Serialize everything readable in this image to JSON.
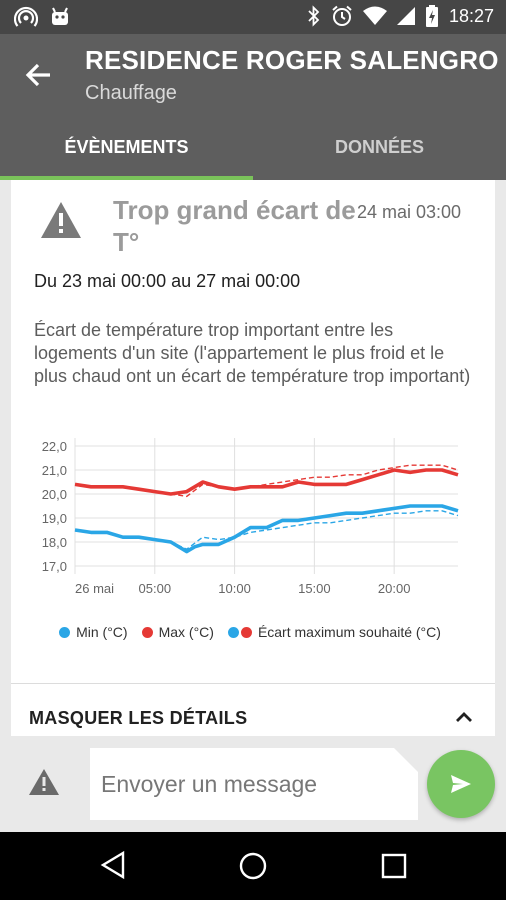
{
  "status": {
    "time": "18:27",
    "icons": [
      "hotspot-icon",
      "android-icon",
      "bluetooth-icon",
      "alarm-icon",
      "wifi-icon",
      "signal-icon",
      "battery-charging-icon"
    ]
  },
  "header": {
    "title": "RESIDENCE ROGER SALENGRO",
    "subtitle": "Chauffage",
    "back_icon": "arrow-back-icon"
  },
  "tabs": [
    {
      "label": "ÉVÈNEMENTS",
      "active": true
    },
    {
      "label": "DONNÉES",
      "active": false
    }
  ],
  "event": {
    "icon": "warning-icon",
    "title": "Trop grand écart de T°",
    "date": "24 mai 03:00",
    "range": "Du 23 mai 00:00 au 27 mai 00:00",
    "description": "Écart de température trop important entre les logements d'un site (l'appartement le plus froid et le plus chaud ont un écart de température trop important)"
  },
  "colors": {
    "min": "#2aa6e6",
    "max": "#e53935",
    "accent": "#7ac35a"
  },
  "chart_data": {
    "type": "line",
    "x_ticks": [
      "26 mai",
      "05:00",
      "10:00",
      "15:00",
      "20:00"
    ],
    "y_ticks": [
      "22,0",
      "21,0",
      "20,0",
      "19,0",
      "18,0",
      "17,0"
    ],
    "ylim": [
      17,
      22
    ],
    "xlim": [
      0,
      24
    ],
    "grid": true,
    "legend_position": "bottom",
    "series": [
      {
        "name": "Min (°C)",
        "color": "#2aa6e6",
        "style": "solid",
        "x": [
          0,
          1,
          2,
          3,
          4,
          5,
          6,
          7,
          7.5,
          8,
          9,
          10,
          11,
          12,
          13,
          14,
          15,
          16,
          17,
          18,
          19,
          20,
          21,
          22,
          23,
          24
        ],
        "y": [
          18.5,
          18.4,
          18.4,
          18.2,
          18.2,
          18.1,
          18.0,
          17.6,
          17.8,
          17.9,
          17.9,
          18.2,
          18.6,
          18.6,
          18.9,
          18.9,
          19.0,
          19.1,
          19.2,
          19.2,
          19.3,
          19.4,
          19.5,
          19.5,
          19.5,
          19.3
        ]
      },
      {
        "name": "Max (°C)",
        "color": "#e53935",
        "style": "solid",
        "x": [
          0,
          1,
          2,
          3,
          4,
          5,
          6,
          7,
          8,
          9,
          10,
          11,
          12,
          13,
          14,
          15,
          16,
          17,
          18,
          19,
          20,
          21,
          22,
          23,
          24
        ],
        "y": [
          20.4,
          20.3,
          20.3,
          20.3,
          20.2,
          20.1,
          20.0,
          20.1,
          20.5,
          20.3,
          20.2,
          20.3,
          20.3,
          20.3,
          20.5,
          20.4,
          20.4,
          20.4,
          20.6,
          20.8,
          21.0,
          20.9,
          21.0,
          21.0,
          20.8
        ]
      },
      {
        "name": "Écart maximum souhaité (°C)",
        "color": "#2aa6e6",
        "style": "dashed",
        "x": [
          0,
          1,
          2,
          3,
          4,
          5,
          6,
          7,
          8,
          9,
          10,
          11,
          12,
          13,
          14,
          15,
          16,
          17,
          18,
          19,
          20,
          21,
          22,
          23,
          24
        ],
        "y": [
          18.5,
          18.4,
          18.4,
          18.2,
          18.2,
          18.1,
          18.0,
          17.7,
          18.2,
          18.1,
          18.2,
          18.4,
          18.5,
          18.6,
          18.7,
          18.8,
          18.8,
          18.9,
          19.0,
          19.1,
          19.2,
          19.2,
          19.3,
          19.3,
          19.1
        ]
      },
      {
        "name": "Écart maximum souhaité (°C)",
        "color": "#e53935",
        "style": "dashed",
        "x": [
          0,
          1,
          2,
          3,
          4,
          5,
          6,
          7,
          8,
          9,
          10,
          11,
          12,
          13,
          14,
          15,
          16,
          17,
          18,
          19,
          20,
          21,
          22,
          23,
          24
        ],
        "y": [
          20.4,
          20.3,
          20.3,
          20.3,
          20.2,
          20.1,
          20.0,
          19.9,
          20.4,
          20.3,
          20.2,
          20.3,
          20.4,
          20.5,
          20.6,
          20.7,
          20.7,
          20.8,
          20.8,
          21.0,
          21.1,
          21.2,
          21.2,
          21.2,
          21.0
        ]
      }
    ]
  },
  "legend": {
    "min": "Min (°C)",
    "max": "Max (°C)",
    "ecart": "Écart maximum souhaité (°C)"
  },
  "details_toggle": {
    "label": "MASQUER LES DÉTAILS",
    "icon": "chevron-up-icon"
  },
  "composer": {
    "placeholder": "Envoyer un message",
    "attach_icon": "warning-icon",
    "send_icon": "send-icon"
  },
  "navbar": {
    "back_icon": "nav-back-icon",
    "home_icon": "nav-home-icon",
    "recents_icon": "nav-recents-icon"
  }
}
